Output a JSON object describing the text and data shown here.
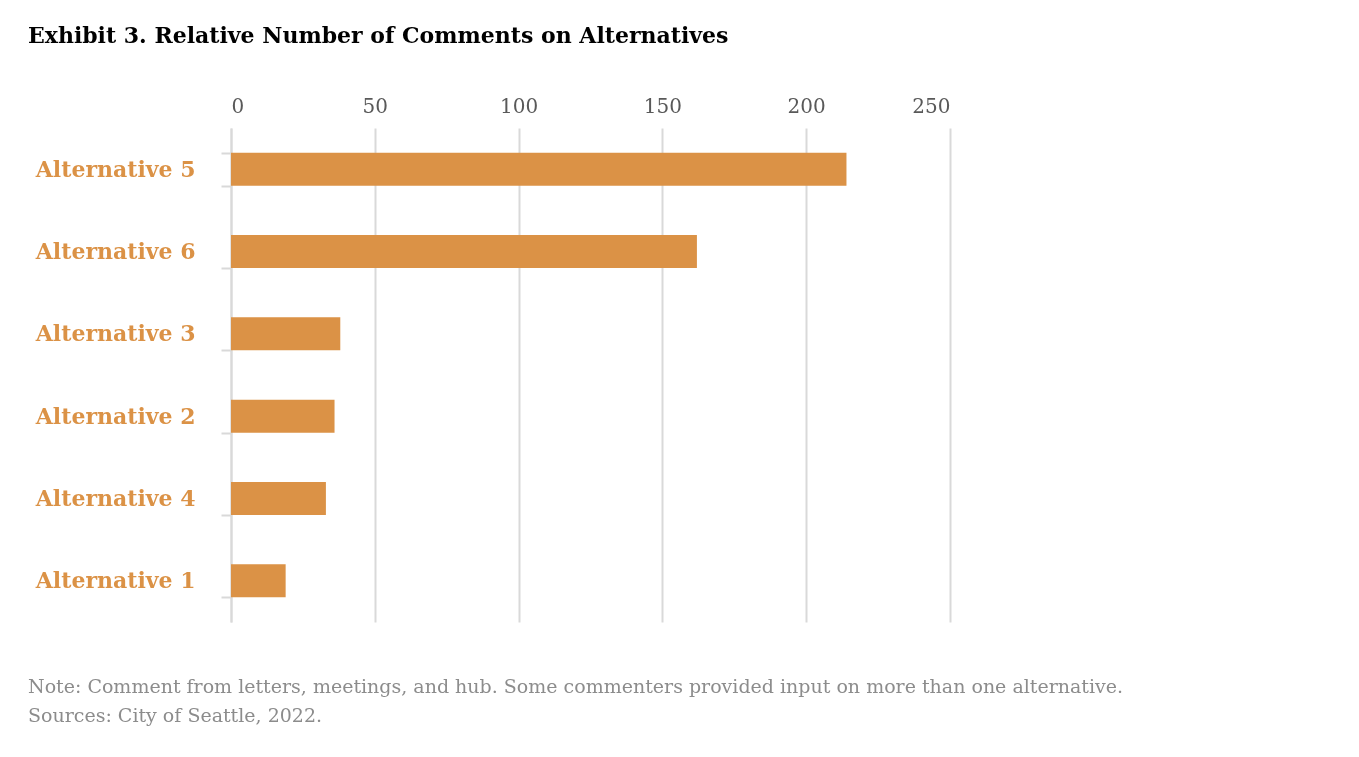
{
  "chart_data": {
    "type": "bar",
    "orientation": "horizontal",
    "title": "Exhibit 3. Relative Number of Comments on Alternatives",
    "categories": [
      "Alternative 5",
      "Alternative 6",
      "Alternative 3",
      "Alternative 2",
      "Alternative 4",
      "Alternative 1"
    ],
    "values": [
      214,
      162,
      38,
      36,
      33,
      19
    ],
    "color": "#db9246",
    "xlim": [
      0,
      250
    ],
    "xticks": [
      0,
      50,
      100,
      150,
      200,
      250
    ],
    "grid": "x",
    "annotations": [
      "Note: Comment from letters, meetings, and hub. Some commenters provided input on more than one alternative.",
      "Sources: City of Seattle, 2022."
    ]
  }
}
